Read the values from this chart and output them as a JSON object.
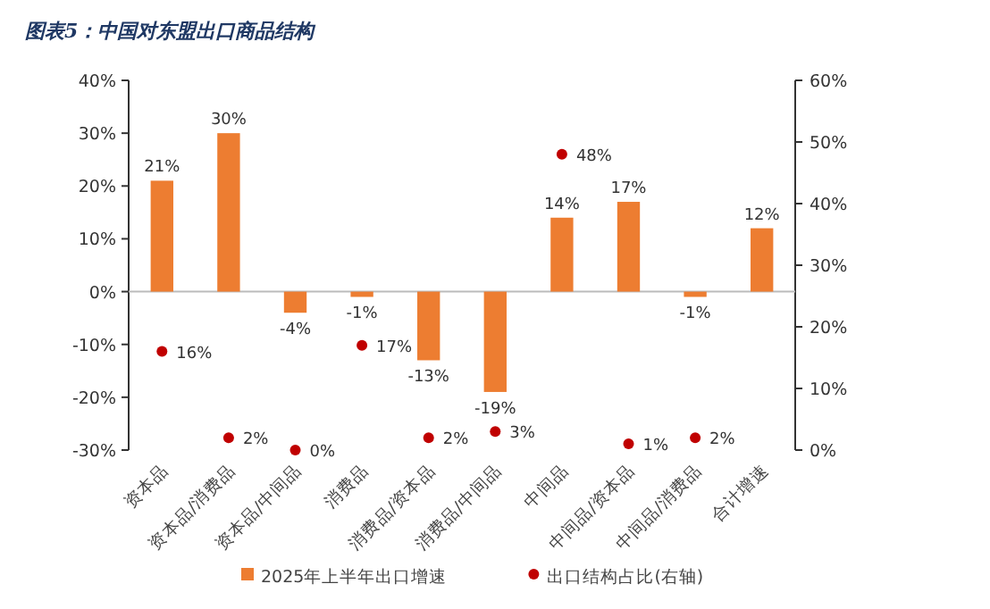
{
  "chart_data": {
    "type": "bar",
    "title": "图表5：中国对东盟出口商品结构",
    "categories": [
      "资本品",
      "资本品/消费品",
      "资本品/中间品",
      "消费品",
      "消费品/资本品",
      "消费品/中间品",
      "中间品",
      "中间品/资本品",
      "中间品/消费品",
      "合计增速"
    ],
    "series": [
      {
        "name": "2025年上半年出口增速",
        "type": "bar",
        "color": "#ed7d31",
        "values": [
          21,
          30,
          -4,
          -1,
          -13,
          -19,
          14,
          17,
          -1,
          12
        ],
        "value_labels": [
          "21%",
          "30%",
          "-4%",
          "-1%",
          "-13%",
          "-19%",
          "14%",
          "17%",
          "-1%",
          "12%"
        ]
      },
      {
        "name": "出口结构占比(右轴)",
        "type": "scatter",
        "axis": "y2",
        "color": "#c00000",
        "marker": "circle",
        "values": [
          16,
          2,
          0,
          17,
          2,
          3,
          48,
          1,
          2,
          null
        ],
        "value_labels": [
          "16%",
          "2%",
          "0%",
          "17%",
          "2%",
          "3%",
          "48%",
          "1%",
          "2%",
          null
        ]
      }
    ],
    "ylim": [
      -30,
      40
    ],
    "yticks": [
      {
        "value": -30,
        "label": "-30%"
      },
      {
        "value": -20,
        "label": "-20%"
      },
      {
        "value": -10,
        "label": "-10%"
      },
      {
        "value": 0,
        "label": "0%"
      },
      {
        "value": 10,
        "label": "10%"
      },
      {
        "value": 20,
        "label": "20%"
      },
      {
        "value": 30,
        "label": "30%"
      },
      {
        "value": 40,
        "label": "40%"
      }
    ],
    "y2lim": [
      0,
      60
    ],
    "y2ticks": [
      {
        "value": 0,
        "label": "0%"
      },
      {
        "value": 10,
        "label": "10%"
      },
      {
        "value": 20,
        "label": "20%"
      },
      {
        "value": 30,
        "label": "30%"
      },
      {
        "value": 40,
        "label": "40%"
      },
      {
        "value": 50,
        "label": "50%"
      },
      {
        "value": 60,
        "label": "60%"
      }
    ],
    "legend": "bottom"
  }
}
